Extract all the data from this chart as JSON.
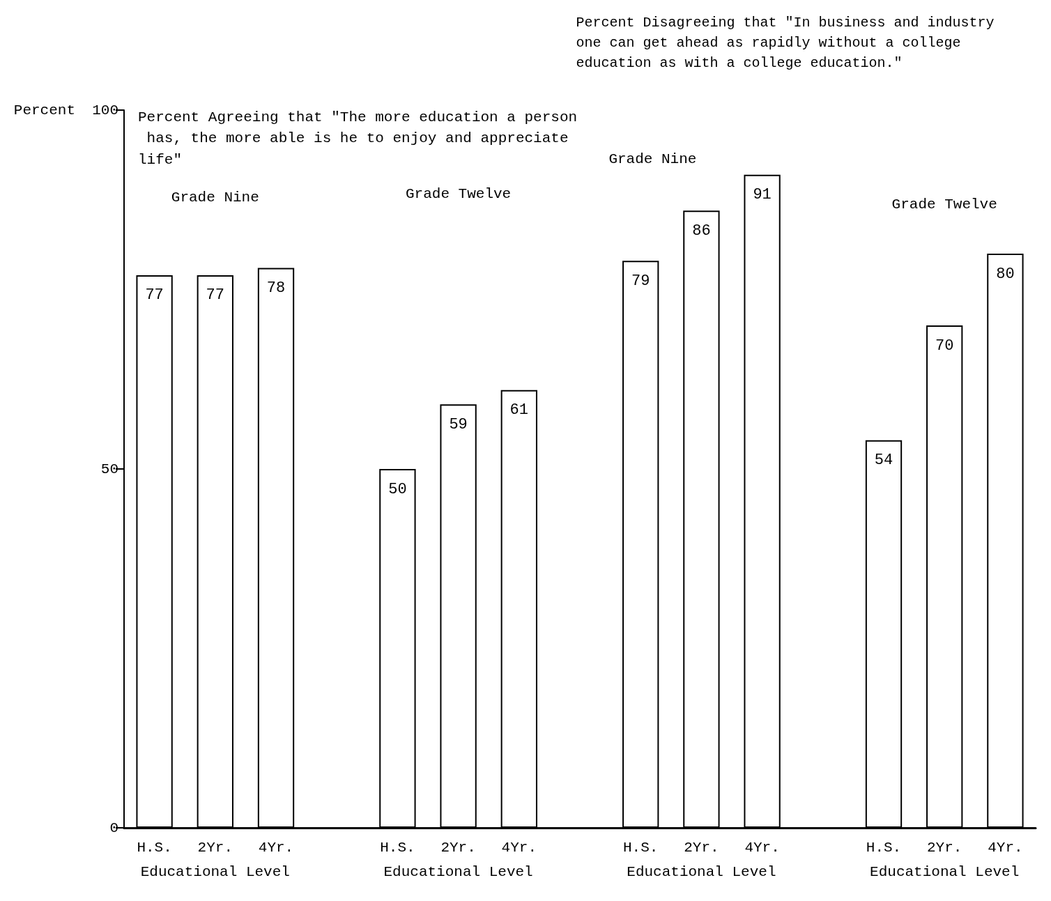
{
  "chart_data": {
    "type": "bar",
    "ylabel": "Percent",
    "categories": [
      "H.S.",
      "2Yr.",
      "4Yr.",
      null,
      "H.S.",
      "2Yr.",
      "4Yr.",
      null,
      "H.S.",
      "2Yr.",
      "4Yr.",
      null,
      "H.S.",
      "2Yr.",
      "4Yr."
    ],
    "values": [
      77,
      77,
      78,
      null,
      50,
      59,
      61,
      null,
      79,
      86,
      91,
      null,
      54,
      70,
      80
    ],
    "color": "#ffffff",
    "data_labels": true,
    "grid": false,
    "ylim": [
      0,
      100
    ],
    "yticks": [
      0,
      50,
      100
    ],
    "annotations": [
      "Percent Agreeing that \"The more education a person has, the more able is he to enjoy and appreciate life\"",
      "Grade Nine",
      "Grade Twelve",
      "Percent Disagreeing that \"In business and industry one can get ahead as rapidly without a college education as with a college education.\"",
      "Grade Nine",
      "Grade Twelve",
      "Educational Level",
      "Educational Level",
      "Educational Level",
      "Educational Level"
    ]
  }
}
